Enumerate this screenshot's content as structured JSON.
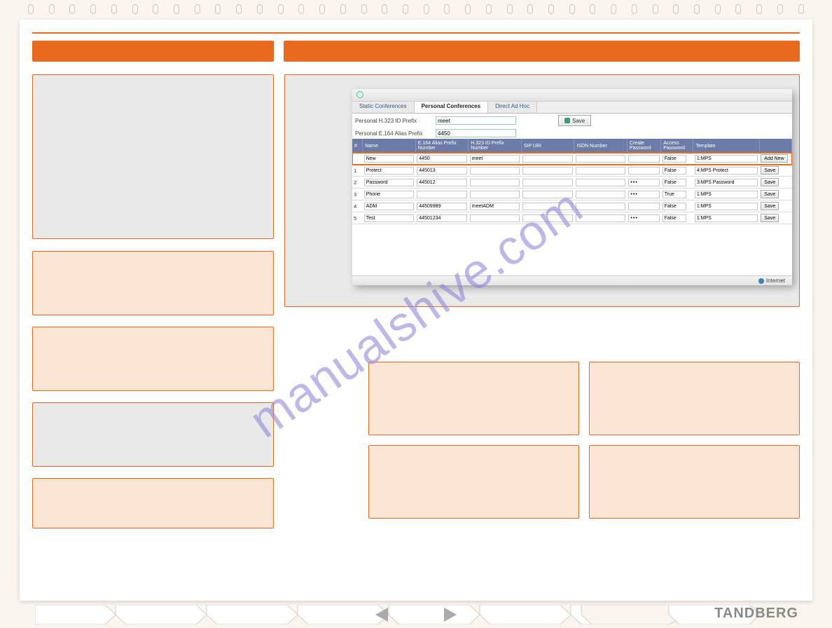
{
  "colors": {
    "accent": "#e96a1f",
    "peach": "#fbe6d5",
    "gray_panel": "#e9e9e9",
    "page_bg": "#faf5ef",
    "watermark": "#8a7fd8",
    "brand_gray": "#8a8a8a",
    "table_header": "#6b7ca8"
  },
  "watermark_text": "manualshive.com",
  "brand": "TANDBERG",
  "screenshot": {
    "tabs": {
      "static": "Static Conferences",
      "personal": "Personal Conferences",
      "adhoc": "Direct Ad Hoc"
    },
    "form": {
      "h323_label": "Personal H.323 ID Prefix",
      "h323_value": "meet",
      "e164_label": "Personal E.164 Alias Prefix",
      "e164_value": "4450",
      "save_label": "Save"
    },
    "columns": {
      "num": "#",
      "name": "Name",
      "e164": "E.164 Alias Prefix Number",
      "h323": "H.323 ID Prefix Number",
      "sip": "SIP URI",
      "isdn": "ISDN Number",
      "createpw": "Create Password",
      "accesspw": "Access Password",
      "template": "Template"
    },
    "new_row": {
      "name": "New",
      "e164": "4450",
      "h323": "meet",
      "create": "False",
      "template": "1:MPS",
      "action": "Add New"
    },
    "rows": [
      {
        "num": "1",
        "name": "Protect",
        "e164": "445013",
        "h323": "",
        "sip": "",
        "isdn": "",
        "createpw": "",
        "accesspw": "False",
        "template": "4:MPS Protect",
        "action": "Save"
      },
      {
        "num": "2",
        "name": "Password",
        "e164": "445012",
        "h323": "",
        "sip": "",
        "isdn": "",
        "createpw": "•••",
        "accesspw": "False",
        "template": "3:MPS Password",
        "action": "Save"
      },
      {
        "num": "3",
        "name": "Phone",
        "e164": "",
        "h323": "",
        "sip": "",
        "isdn": "",
        "createpw": "•••",
        "accesspw": "True",
        "template": "1:MPS",
        "action": "Save"
      },
      {
        "num": "4",
        "name": "ADM",
        "e164": "44509989",
        "h323": "meetADM",
        "sip": "",
        "isdn": "",
        "createpw": "",
        "accesspw": "False",
        "template": "1:MPS",
        "action": "Save"
      },
      {
        "num": "5",
        "name": "Test",
        "e164": "44501234",
        "h323": "",
        "sip": "",
        "isdn": "",
        "createpw": "•••",
        "accesspw": "False",
        "template": "1:MPS",
        "action": "Save"
      }
    ],
    "footer": "Internet"
  }
}
